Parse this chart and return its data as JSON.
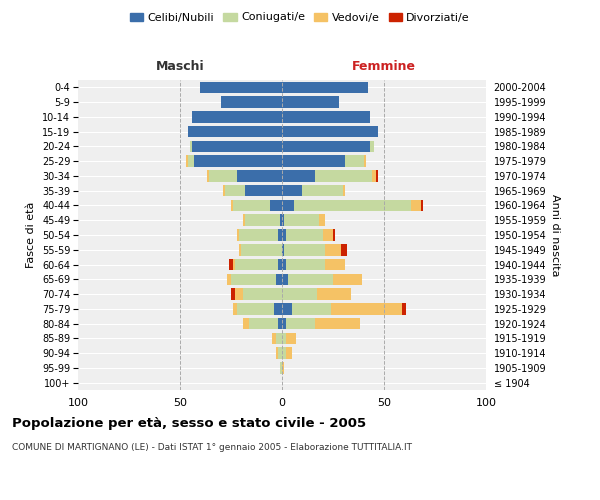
{
  "age_groups": [
    "100+",
    "95-99",
    "90-94",
    "85-89",
    "80-84",
    "75-79",
    "70-74",
    "65-69",
    "60-64",
    "55-59",
    "50-54",
    "45-49",
    "40-44",
    "35-39",
    "30-34",
    "25-29",
    "20-24",
    "15-19",
    "10-14",
    "5-9",
    "0-4"
  ],
  "birth_years": [
    "≤ 1904",
    "1905-1909",
    "1910-1914",
    "1915-1919",
    "1920-1924",
    "1925-1929",
    "1930-1934",
    "1935-1939",
    "1940-1944",
    "1945-1949",
    "1950-1954",
    "1955-1959",
    "1960-1964",
    "1965-1969",
    "1970-1974",
    "1975-1979",
    "1980-1984",
    "1985-1989",
    "1990-1994",
    "1995-1999",
    "2000-2004"
  ],
  "maschi": {
    "celibi": [
      0,
      0,
      0,
      0,
      2,
      4,
      0,
      3,
      2,
      0,
      2,
      1,
      6,
      18,
      22,
      43,
      44,
      46,
      44,
      30,
      40
    ],
    "coniugati": [
      0,
      1,
      2,
      3,
      14,
      18,
      19,
      22,
      21,
      20,
      19,
      17,
      18,
      10,
      14,
      3,
      1,
      0,
      0,
      0,
      0
    ],
    "vedovi": [
      0,
      0,
      1,
      2,
      3,
      2,
      4,
      2,
      1,
      1,
      1,
      1,
      1,
      1,
      1,
      1,
      0,
      0,
      0,
      0,
      0
    ],
    "divorziati": [
      0,
      0,
      0,
      0,
      0,
      0,
      2,
      0,
      2,
      0,
      0,
      0,
      0,
      0,
      0,
      0,
      0,
      0,
      0,
      0,
      0
    ]
  },
  "femmine": {
    "nubili": [
      0,
      0,
      0,
      0,
      2,
      5,
      0,
      3,
      2,
      1,
      2,
      1,
      6,
      10,
      16,
      31,
      43,
      47,
      43,
      28,
      42
    ],
    "coniugate": [
      0,
      0,
      2,
      2,
      14,
      19,
      17,
      22,
      19,
      20,
      18,
      17,
      57,
      20,
      28,
      9,
      2,
      0,
      0,
      0,
      0
    ],
    "vedove": [
      0,
      1,
      3,
      5,
      22,
      35,
      17,
      14,
      10,
      8,
      5,
      3,
      5,
      1,
      2,
      1,
      0,
      0,
      0,
      0,
      0
    ],
    "divorziate": [
      0,
      0,
      0,
      0,
      0,
      2,
      0,
      0,
      0,
      3,
      1,
      0,
      1,
      0,
      1,
      0,
      0,
      0,
      0,
      0,
      0
    ]
  },
  "colors": {
    "celibi_nubili": "#3b6eaa",
    "coniugati": "#c5d9a0",
    "vedovi": "#f5c265",
    "divorziati": "#cc2200"
  },
  "title": "Popolazione per età, sesso e stato civile - 2005",
  "subtitle": "COMUNE DI MARTIGNANO (LE) - Dati ISTAT 1° gennaio 2005 - Elaborazione TUTTITALIA.IT",
  "xlabel_left": "Maschi",
  "xlabel_right": "Femmine",
  "ylabel_left": "Fasce di età",
  "ylabel_right": "Anni di nascita",
  "xlim": 100,
  "legend_labels": [
    "Celibi/Nubili",
    "Coniugati/e",
    "Vedovi/e",
    "Divorziati/e"
  ],
  "bg_color": "#ffffff",
  "plot_bg_color": "#efefef",
  "grid_color": "#ffffff"
}
